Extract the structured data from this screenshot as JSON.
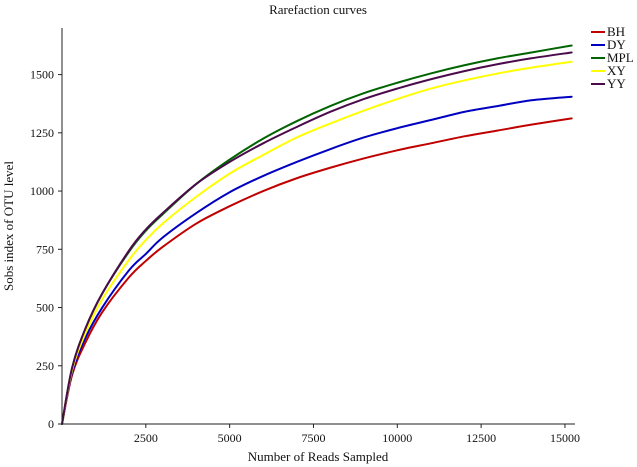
{
  "chart_data": {
    "type": "line",
    "title": "Rarefaction curves",
    "xlabel": "Number of Reads Sampled",
    "ylabel": "Sobs index of OTU level",
    "xlim": [
      0,
      15300
    ],
    "ylim": [
      0,
      1700
    ],
    "xticks": [
      2500,
      5000,
      7500,
      10000,
      12500,
      15000
    ],
    "xtick_labels": [
      "2500",
      "5000",
      "7500",
      "10000",
      "12500",
      "15000"
    ],
    "yticks": [
      0,
      250,
      500,
      750,
      1000,
      1250,
      1500
    ],
    "ytick_labels": [
      "0",
      "250",
      "500",
      "750",
      "1000",
      "1250",
      "1500"
    ],
    "legend_position": "top-right",
    "series": [
      {
        "name": "BH",
        "color": "#c00000",
        "x": [
          0,
          300,
          700,
          1200,
          2000,
          2500,
          3000,
          4000,
          5000,
          6000,
          7000,
          8000,
          9000,
          10000,
          11000,
          12000,
          13000,
          14000,
          15200
        ],
        "y": [
          0,
          210,
          350,
          480,
          630,
          700,
          760,
          860,
          935,
          1000,
          1055,
          1100,
          1140,
          1175,
          1205,
          1235,
          1260,
          1285,
          1312
        ]
      },
      {
        "name": "DY",
        "color": "#0000c0",
        "x": [
          0,
          300,
          700,
          1200,
          2000,
          2500,
          3000,
          4000,
          5000,
          6000,
          7000,
          8000,
          9000,
          10000,
          11000,
          12000,
          13000,
          14000,
          15200
        ],
        "y": [
          0,
          220,
          370,
          500,
          660,
          730,
          800,
          905,
          995,
          1065,
          1125,
          1180,
          1230,
          1270,
          1305,
          1340,
          1365,
          1390,
          1405
        ]
      },
      {
        "name": "MPL",
        "color": "#006400",
        "x": [
          0,
          300,
          700,
          1200,
          2000,
          2500,
          3000,
          4000,
          5000,
          6000,
          7000,
          8000,
          9000,
          10000,
          11000,
          12000,
          13000,
          14000,
          15200
        ],
        "y": [
          0,
          240,
          410,
          560,
          740,
          830,
          900,
          1030,
          1135,
          1225,
          1300,
          1365,
          1420,
          1465,
          1505,
          1540,
          1570,
          1595,
          1625
        ]
      },
      {
        "name": "XY",
        "color": "#ffff00",
        "x": [
          0,
          300,
          700,
          1200,
          2000,
          2500,
          3000,
          4000,
          5000,
          6000,
          7000,
          8000,
          9000,
          10000,
          11000,
          12000,
          13000,
          14000,
          15200
        ],
        "y": [
          0,
          230,
          390,
          535,
          705,
          790,
          860,
          975,
          1075,
          1155,
          1230,
          1290,
          1345,
          1395,
          1440,
          1475,
          1505,
          1530,
          1555
        ]
      },
      {
        "name": "YY",
        "color": "#4b0b4b",
        "x": [
          0,
          300,
          700,
          1200,
          2000,
          2500,
          3000,
          4000,
          5000,
          6000,
          7000,
          8000,
          9000,
          10000,
          11000,
          12000,
          13000,
          14000,
          15200
        ],
        "y": [
          0,
          240,
          410,
          560,
          745,
          835,
          905,
          1030,
          1125,
          1205,
          1275,
          1340,
          1395,
          1440,
          1480,
          1515,
          1545,
          1570,
          1595
        ]
      }
    ]
  }
}
